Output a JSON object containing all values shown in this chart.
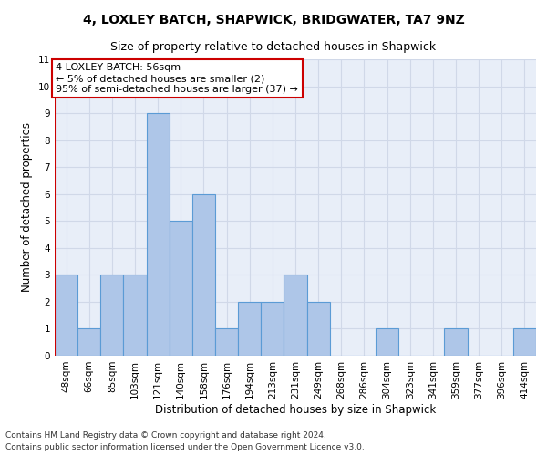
{
  "title1": "4, LOXLEY BATCH, SHAPWICK, BRIDGWATER, TA7 9NZ",
  "title2": "Size of property relative to detached houses in Shapwick",
  "xlabel": "Distribution of detached houses by size in Shapwick",
  "ylabel": "Number of detached properties",
  "categories": [
    "48sqm",
    "66sqm",
    "85sqm",
    "103sqm",
    "121sqm",
    "140sqm",
    "158sqm",
    "176sqm",
    "194sqm",
    "213sqm",
    "231sqm",
    "249sqm",
    "268sqm",
    "286sqm",
    "304sqm",
    "323sqm",
    "341sqm",
    "359sqm",
    "377sqm",
    "396sqm",
    "414sqm"
  ],
  "values": [
    3,
    1,
    3,
    3,
    9,
    5,
    6,
    1,
    2,
    2,
    3,
    2,
    0,
    0,
    1,
    0,
    0,
    1,
    0,
    0,
    1
  ],
  "bar_color": "#aec6e8",
  "bar_edge_color": "#5b9bd5",
  "annotation_box_text": "4 LOXLEY BATCH: 56sqm\n← 5% of detached houses are smaller (2)\n95% of semi-detached houses are larger (37) →",
  "annotation_box_color": "#ffffff",
  "annotation_box_edge_color": "#cc0000",
  "red_line_color": "#cc0000",
  "grid_color": "#d0d8e8",
  "bg_color": "#e8eef8",
  "ylim": [
    0,
    11
  ],
  "yticks": [
    0,
    1,
    2,
    3,
    4,
    5,
    6,
    7,
    8,
    9,
    10,
    11
  ],
  "footer_line1": "Contains HM Land Registry data © Crown copyright and database right 2024.",
  "footer_line2": "Contains public sector information licensed under the Open Government Licence v3.0.",
  "title1_fontsize": 10,
  "title2_fontsize": 9,
  "xlabel_fontsize": 8.5,
  "ylabel_fontsize": 8.5,
  "tick_fontsize": 7.5,
  "annotation_fontsize": 8,
  "footer_fontsize": 6.5
}
